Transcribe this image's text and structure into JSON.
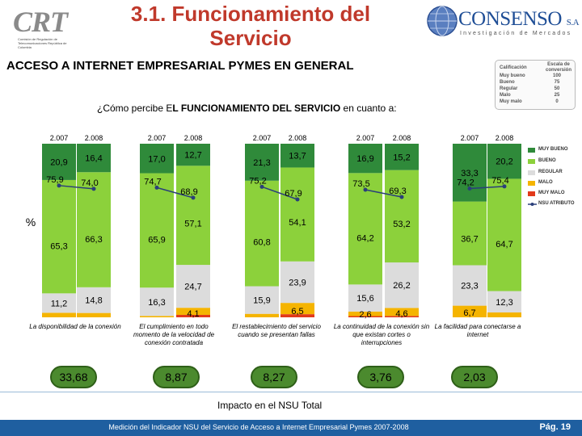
{
  "header": {
    "title": "3.1. Funcionamiento del Servicio",
    "subtitle": "ACCESO A INTERNET EMPRESARIAL PYMES EN GENERAL",
    "crt_logo_text": "CRT",
    "crt_logo_subtext": "Comisión de Regulación de Telecomunicaciones República de Colombia",
    "consenso_name": "CONSENSO",
    "consenso_suffix": "S.A",
    "consenso_tagline": "Investigación de Mercados"
  },
  "scale": {
    "header_label": "Calificación",
    "header_value": "Escala de conversión",
    "rows": [
      {
        "label": "Muy bueno",
        "value": "100"
      },
      {
        "label": "Bueno",
        "value": "75"
      },
      {
        "label": "Regular",
        "value": "50"
      },
      {
        "label": "Malo",
        "value": "25"
      },
      {
        "label": "Muy malo",
        "value": "0"
      }
    ]
  },
  "question": {
    "prefix": "¿Cómo percibe E",
    "bold": "L FUNCIONAMIENTO DEL SERVICIO",
    "suffix": " en cuanto a:"
  },
  "impact_label": "Impacto en el NSU Total",
  "footer": {
    "text": "Medición del Indicador NSU del Servicio de Acceso a Internet Empresarial Pymes 2007-2008",
    "page": "Pág. 19"
  },
  "colors": {
    "muy_bueno": "#2f8a3a",
    "bueno": "#8cd13b",
    "regular": "#dcdcdc",
    "malo": "#f5b400",
    "muy_malo": "#e23a1a",
    "nsu_line": "#2a3f7a",
    "title": "#c0392b"
  },
  "chart_data": {
    "type": "bar",
    "stacked": true,
    "ylabel": "%",
    "ylim": [
      0,
      100
    ],
    "legend_position": "right",
    "legend": [
      "MUY BUENO",
      "BUENO",
      "REGULAR",
      "MALO",
      "MUY MALO",
      "NSU ATRIBUTO"
    ],
    "groups": [
      {
        "label": "La disponibilidad de la conexión",
        "nsu_impact": "33,68",
        "bars": [
          {
            "year": "2.007",
            "muy_bueno": 20.9,
            "bueno": 65.3,
            "regular": 11.2,
            "malo": 2.6,
            "muy_malo": 0,
            "muy_bueno_label": "20,9",
            "bueno_label": "65,3",
            "regular_label": "11,2",
            "malo_label": "",
            "nsu": 75.9,
            "nsu_label": "75,9"
          },
          {
            "year": "2.008",
            "muy_bueno": 16.4,
            "bueno": 66.3,
            "regular": 14.8,
            "malo": 2.5,
            "muy_malo": 0,
            "muy_bueno_label": "16,4",
            "bueno_label": "66,3",
            "regular_label": "14,8",
            "malo_label": "",
            "nsu": 74.0,
            "nsu_label": "74,0"
          }
        ]
      },
      {
        "label": "El cumplimiento en todo momento de la velocidad de conexión contratada",
        "nsu_impact": "8,87",
        "bars": [
          {
            "year": "2.007",
            "muy_bueno": 17.0,
            "bueno": 65.9,
            "regular": 16.3,
            "malo": 0.8,
            "muy_malo": 0,
            "muy_bueno_label": "17,0",
            "bueno_label": "65,9",
            "regular_label": "16,3",
            "malo_label": "",
            "nsu": 74.7,
            "nsu_label": "74,7"
          },
          {
            "year": "2.008",
            "muy_bueno": 12.7,
            "bueno": 57.1,
            "regular": 24.7,
            "malo": 4.1,
            "muy_malo": 1.4,
            "muy_bueno_label": "12,7",
            "bueno_label": "57,1",
            "regular_label": "24,7",
            "malo_label": "4,1",
            "nsu": 68.9,
            "nsu_label": "68,9"
          }
        ]
      },
      {
        "label": "El restablecimiento del servicio cuando se presentan fallas",
        "nsu_impact": "8,27",
        "bars": [
          {
            "year": "2.007",
            "muy_bueno": 21.3,
            "bueno": 60.8,
            "regular": 15.9,
            "malo": 2.0,
            "muy_malo": 0,
            "muy_bueno_label": "21,3",
            "bueno_label": "60,8",
            "regular_label": "15,9",
            "malo_label": "",
            "nsu": 75.2,
            "nsu_label": "75,2"
          },
          {
            "year": "2.008",
            "muy_bueno": 13.7,
            "bueno": 54.1,
            "regular": 23.9,
            "malo": 6.5,
            "muy_malo": 1.8,
            "muy_bueno_label": "13,7",
            "bueno_label": "54,1",
            "regular_label": "23,9",
            "malo_label": "6,5",
            "nsu": 67.9,
            "nsu_label": "67,9"
          }
        ]
      },
      {
        "label": "La continuidad de la conexión sin que existan cortes o interrupciones",
        "nsu_impact": "3,76",
        "bars": [
          {
            "year": "2.007",
            "muy_bueno": 16.9,
            "bueno": 64.2,
            "regular": 15.6,
            "malo": 2.6,
            "muy_malo": 0.7,
            "muy_bueno_label": "16,9",
            "bueno_label": "64,2",
            "regular_label": "15,6",
            "malo_label": "2,6",
            "nsu": 73.5,
            "nsu_label": "73,5"
          },
          {
            "year": "2.008",
            "muy_bueno": 15.2,
            "bueno": 53.2,
            "regular": 26.2,
            "malo": 4.6,
            "muy_malo": 0.8,
            "muy_bueno_label": "15,2",
            "bueno_label": "53,2",
            "regular_label": "26,2",
            "malo_label": "4,6",
            "nsu": 69.3,
            "nsu_label": "69,3"
          }
        ]
      },
      {
        "label": "La facilidad para conectarse a internet",
        "nsu_impact": "2,03",
        "bars": [
          {
            "year": "2.007",
            "muy_bueno": 33.3,
            "bueno": 36.7,
            "regular": 23.3,
            "malo": 6.7,
            "muy_malo": 0,
            "muy_bueno_label": "33,3",
            "bueno_label": "36,7",
            "regular_label": "23,3",
            "malo_label": "6,7",
            "nsu": 74.2,
            "nsu_label": "74,2"
          },
          {
            "year": "2.008",
            "muy_bueno": 20.2,
            "bueno": 64.7,
            "regular": 12.3,
            "malo": 2.8,
            "muy_malo": 0,
            "muy_bueno_label": "20,2",
            "bueno_label": "64,7",
            "regular_label": "12,3",
            "malo_label": "",
            "nsu": 75.4,
            "nsu_label": "75,4"
          }
        ]
      }
    ]
  }
}
